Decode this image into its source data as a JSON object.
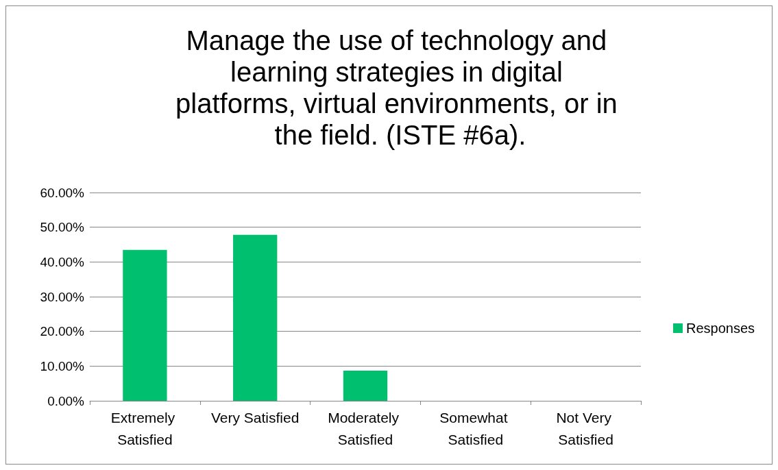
{
  "chart_data": {
    "type": "bar",
    "title": "Manage the use of technology and learning strategies in digital platforms, virtual environments, or in the field. (ISTE #6a).",
    "categories": [
      "Extremely Satisfied",
      "Very Satisfied",
      "Moderately Satisfied",
      "Somewhat Satisfied",
      "Not Very Satisfied"
    ],
    "series": [
      {
        "name": "Responses",
        "color": "#00bf6f",
        "values": [
          43.48,
          47.83,
          8.7,
          0,
          0
        ]
      }
    ],
    "ylim": [
      0,
      60
    ],
    "yticks": [
      {
        "value": 0,
        "label": "0.00%"
      },
      {
        "value": 10,
        "label": "10.00%"
      },
      {
        "value": 20,
        "label": "20.00%"
      },
      {
        "value": 30,
        "label": "30.00%"
      },
      {
        "value": 40,
        "label": "40.00%"
      },
      {
        "value": 50,
        "label": "50.00%"
      },
      {
        "value": 60,
        "label": "60.00%"
      }
    ],
    "grid": "y",
    "legend": "right"
  }
}
